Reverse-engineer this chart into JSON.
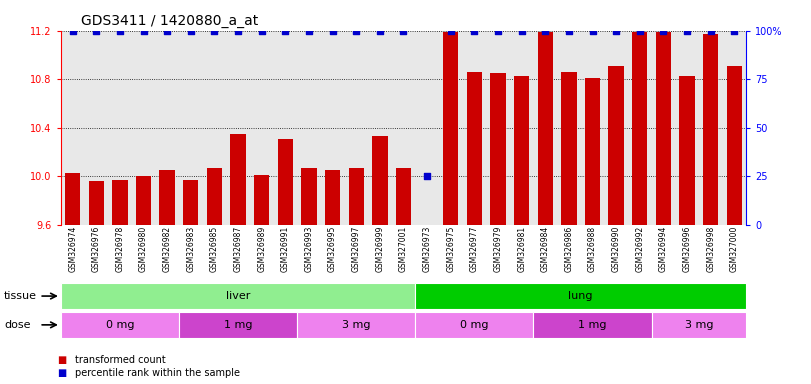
{
  "title": "GDS3411 / 1420880_a_at",
  "categories": [
    "GSM326974",
    "GSM326976",
    "GSM326978",
    "GSM326980",
    "GSM326982",
    "GSM326983",
    "GSM326985",
    "GSM326987",
    "GSM326989",
    "GSM326991",
    "GSM326993",
    "GSM326995",
    "GSM326997",
    "GSM326999",
    "GSM327001",
    "GSM326973",
    "GSM326975",
    "GSM326977",
    "GSM326979",
    "GSM326981",
    "GSM326984",
    "GSM326986",
    "GSM326988",
    "GSM326990",
    "GSM326992",
    "GSM326994",
    "GSM326996",
    "GSM326998",
    "GSM327000"
  ],
  "bar_values": [
    10.03,
    9.96,
    9.97,
    10.0,
    10.05,
    9.97,
    10.07,
    10.35,
    10.01,
    10.31,
    10.07,
    10.05,
    10.07,
    10.33,
    10.07,
    9.6,
    11.19,
    10.86,
    10.85,
    10.83,
    11.19,
    10.86,
    10.81,
    10.91,
    11.19,
    11.19,
    10.83,
    11.17,
    10.91
  ],
  "percentile_values": [
    100,
    100,
    100,
    100,
    100,
    100,
    100,
    100,
    100,
    100,
    100,
    100,
    100,
    100,
    100,
    25,
    100,
    100,
    100,
    100,
    100,
    100,
    100,
    100,
    100,
    100,
    100,
    100,
    100
  ],
  "bar_color": "#cc0000",
  "percentile_color": "#0000cc",
  "ylim_left": [
    9.6,
    11.2
  ],
  "yticks_left": [
    9.6,
    10.0,
    10.4,
    10.8,
    11.2
  ],
  "ylim_right": [
    0,
    100
  ],
  "yticks_right": [
    0,
    25,
    50,
    75,
    100
  ],
  "tissue_groups": [
    {
      "label": "liver",
      "start": 0,
      "end": 15,
      "color": "#90ee90"
    },
    {
      "label": "lung",
      "start": 15,
      "end": 29,
      "color": "#00cc00"
    }
  ],
  "dose_groups": [
    {
      "label": "0 mg",
      "start": 0,
      "end": 5,
      "color": "#ee82ee"
    },
    {
      "label": "1 mg",
      "start": 5,
      "end": 10,
      "color": "#cc44cc"
    },
    {
      "label": "3 mg",
      "start": 10,
      "end": 15,
      "color": "#ee82ee"
    },
    {
      "label": "0 mg",
      "start": 15,
      "end": 20,
      "color": "#ee82ee"
    },
    {
      "label": "1 mg",
      "start": 20,
      "end": 25,
      "color": "#cc44cc"
    },
    {
      "label": "3 mg",
      "start": 25,
      "end": 29,
      "color": "#ee82ee"
    }
  ],
  "dose_colors": [
    "#ee82ee",
    "#cc44cc",
    "#ee82ee",
    "#ee82ee",
    "#cc44cc",
    "#ee82ee"
  ],
  "legend_items": [
    {
      "label": "transformed count",
      "color": "#cc0000"
    },
    {
      "label": "percentile rank within the sample",
      "color": "#0000cc"
    }
  ],
  "background_color": "#ffffff",
  "plot_bg_color": "#e8e8e8",
  "title_fontsize": 10,
  "tick_fontsize": 7,
  "label_fontsize": 8,
  "xtick_fontsize": 5.5
}
